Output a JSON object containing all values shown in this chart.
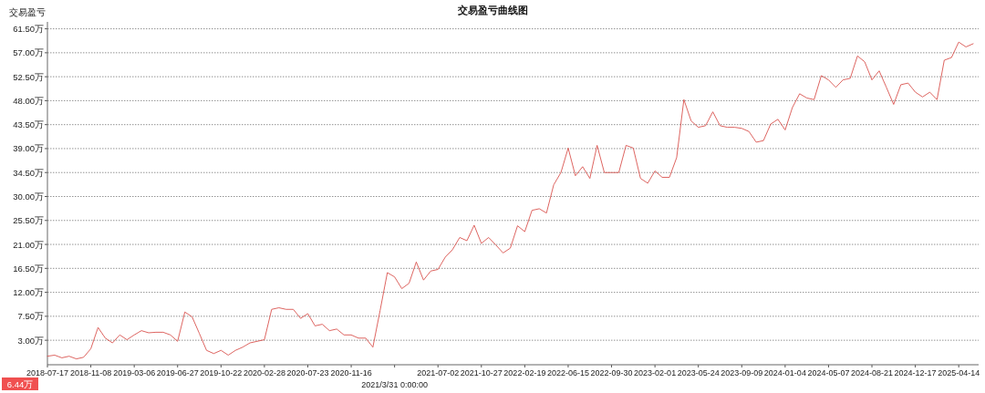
{
  "chart_data": {
    "type": "line",
    "title": "交易盈亏曲线图",
    "ylabel": "交易盈亏",
    "categories": [
      "2018-07-17",
      null,
      null,
      null,
      null,
      null,
      "2018-11-08",
      null,
      null,
      null,
      null,
      null,
      "2019-03-06",
      null,
      null,
      null,
      null,
      null,
      "2019-06-27",
      null,
      null,
      null,
      null,
      null,
      "2019-10-22",
      null,
      null,
      null,
      null,
      null,
      "2020-02-28",
      null,
      null,
      null,
      null,
      null,
      "2020-07-23",
      null,
      null,
      null,
      null,
      null,
      "2020-11-16",
      null,
      null,
      null,
      null,
      null,
      "2021/3/31 0:00:00",
      null,
      null,
      null,
      null,
      null,
      "2021-07-02",
      null,
      null,
      null,
      null,
      null,
      "2021-10-27",
      null,
      null,
      null,
      null,
      null,
      "2022-02-19",
      null,
      null,
      null,
      null,
      null,
      "2022-06-15",
      null,
      null,
      null,
      null,
      null,
      "2022-09-30",
      null,
      null,
      null,
      null,
      null,
      "2023-02-01",
      null,
      null,
      null,
      null,
      null,
      "2023-05-24",
      null,
      null,
      null,
      null,
      null,
      "2023-09-09",
      null,
      null,
      null,
      null,
      null,
      "2024-01-04",
      null,
      null,
      null,
      null,
      null,
      "2024-05-07",
      null,
      null,
      null,
      null,
      null,
      "2024-08-21",
      null,
      null,
      null,
      null,
      null,
      "2024-12-17",
      null,
      null,
      null,
      null,
      null,
      "2025-04-14",
      null,
      null
    ],
    "series": [
      {
        "color": "#d9534f",
        "values": [
          0.0,
          0.2,
          -0.3,
          0.0,
          -0.5,
          -0.2,
          1.4,
          5.4,
          3.4,
          2.5,
          4.0,
          3.1,
          4.0,
          4.8,
          4.4,
          4.5,
          4.5,
          4.0,
          2.8,
          8.3,
          7.4,
          4.3,
          1.1,
          0.5,
          1.1,
          0.2,
          1.1,
          1.7,
          2.5,
          2.8,
          3.1,
          8.8,
          9.1,
          8.8,
          8.8,
          7.1,
          8.0,
          5.7,
          6.0,
          4.8,
          5.1,
          4.0,
          4.0,
          3.4,
          3.4,
          1.7,
          8.6,
          15.7,
          14.9,
          12.7,
          13.7,
          17.7,
          14.3,
          16.0,
          16.3,
          18.6,
          20.0,
          22.3,
          21.7,
          24.6,
          21.2,
          22.3,
          20.9,
          19.4,
          20.3,
          24.5,
          23.4,
          27.4,
          27.7,
          26.9,
          32.2,
          34.5,
          39.1,
          33.9,
          35.6,
          33.4,
          39.6,
          34.5,
          34.5,
          34.5,
          39.6,
          39.1,
          33.4,
          32.5,
          34.8,
          33.6,
          33.6,
          37.3,
          48.2,
          44.2,
          43.0,
          43.3,
          45.9,
          43.3,
          43.0,
          43.0,
          42.8,
          42.2,
          40.2,
          40.5,
          43.6,
          44.5,
          42.5,
          46.7,
          49.3,
          48.5,
          48.2,
          52.7,
          51.9,
          50.5,
          51.9,
          52.2,
          56.4,
          55.3,
          51.9,
          53.6,
          50.5,
          47.3,
          51.0,
          51.3,
          49.6,
          48.7,
          49.6,
          48.2,
          55.6,
          56.1,
          59.0,
          58.1,
          58.7
        ]
      }
    ],
    "ylim": [
      -1.6,
      62.8
    ],
    "yticks": [
      {
        "value": 3,
        "label": "3.00万"
      },
      {
        "value": 7.5,
        "label": "7.50万"
      },
      {
        "value": 12,
        "label": "12.00万"
      },
      {
        "value": 16.5,
        "label": "16.50万"
      },
      {
        "value": 21,
        "label": "21.00万"
      },
      {
        "value": 25.5,
        "label": "25.50万"
      },
      {
        "value": 30,
        "label": "30.00万"
      },
      {
        "value": 34.5,
        "label": "34.50万"
      },
      {
        "value": 39,
        "label": "39.00万"
      },
      {
        "value": 43.5,
        "label": "43.50万"
      },
      {
        "value": 48,
        "label": "48.00万"
      },
      {
        "value": 52.5,
        "label": "52.50万"
      },
      {
        "value": 57,
        "label": "57.00万"
      },
      {
        "value": 61.5,
        "label": "61.50万"
      }
    ],
    "grid": "y",
    "annotations": [
      "6.44万"
    ]
  }
}
